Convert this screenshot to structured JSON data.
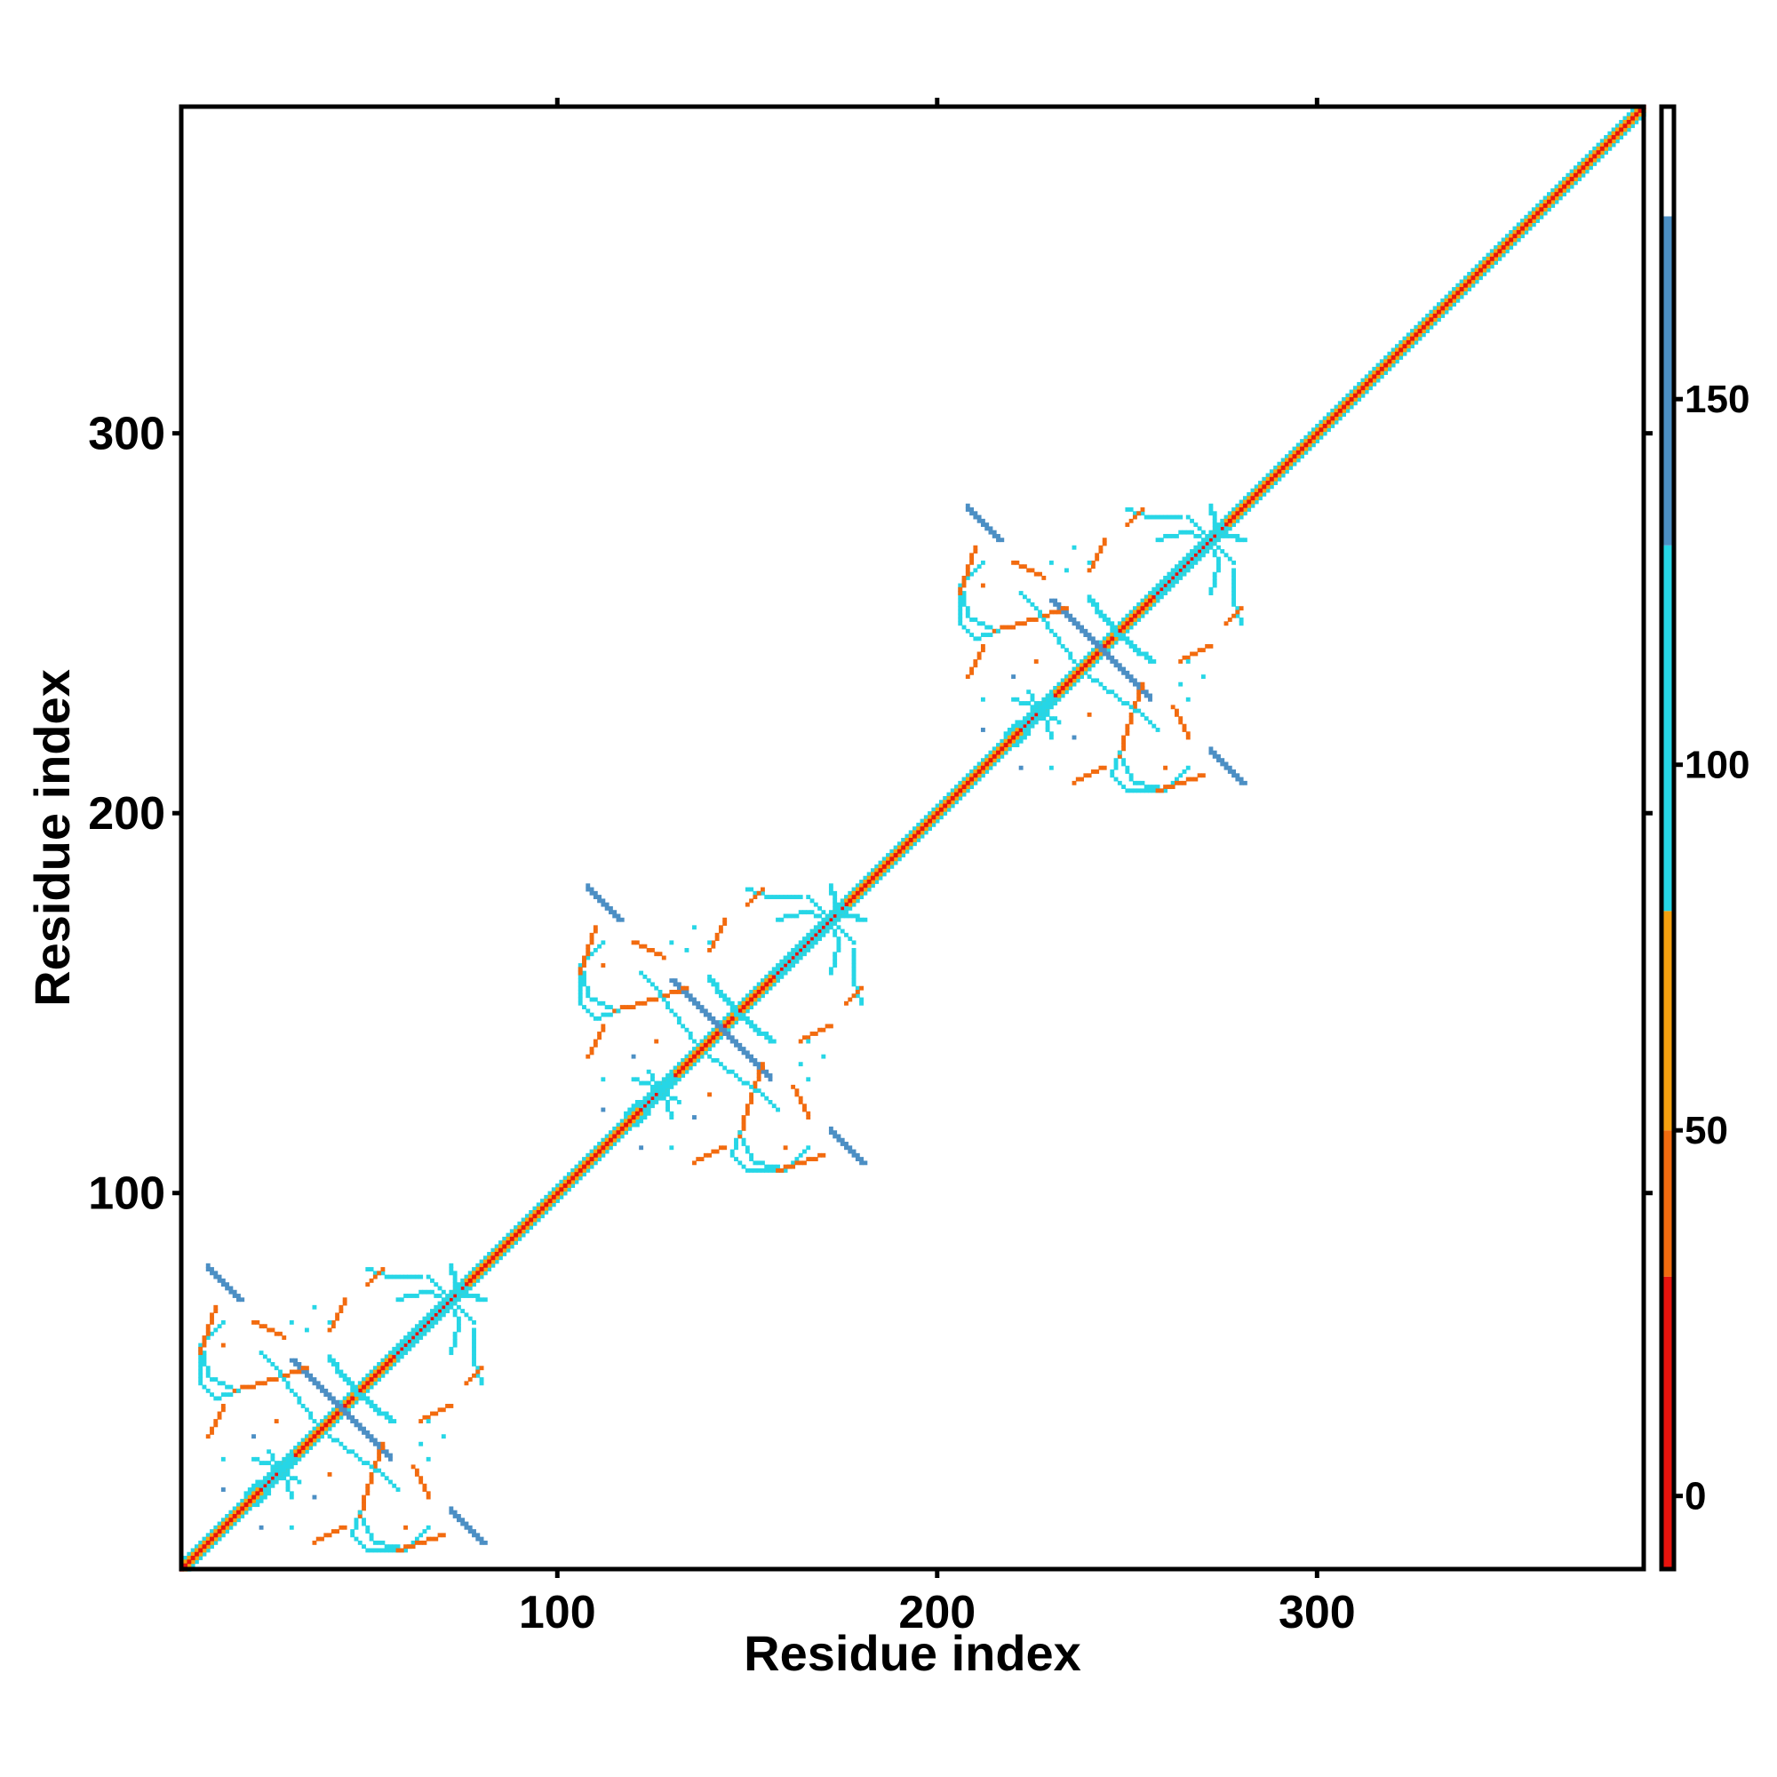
{
  "chart_data": {
    "type": "heatmap",
    "title": "",
    "xlabel": "Residue index",
    "ylabel": "Residue index",
    "xlim": [
      1,
      386
    ],
    "ylim": [
      1,
      386
    ],
    "x_ticks": [
      100,
      200,
      300
    ],
    "y_ticks": [
      100,
      200,
      300
    ],
    "x_tick_labels": [
      "100",
      "200",
      "300"
    ],
    "y_tick_labels": [
      "100",
      "200",
      "300"
    ],
    "grid": false,
    "legend": "colorbar-right",
    "colorbar": {
      "range": [
        -10,
        190
      ],
      "ticks": [
        0,
        50,
        100,
        150
      ],
      "tick_labels": [
        "0",
        "50",
        "100",
        "150"
      ],
      "bands": [
        {
          "from": -10,
          "to": 30,
          "color": "#e8130d"
        },
        {
          "from": 30,
          "to": 50,
          "color": "#f26b0f"
        },
        {
          "from": 50,
          "to": 80,
          "color": "#f5a00f"
        },
        {
          "from": 80,
          "to": 130,
          "color": "#26d6e6"
        },
        {
          "from": 130,
          "to": 175,
          "color": "#4c8fc4"
        },
        {
          "from": 175,
          "to": 190,
          "color": "#ffffff"
        }
      ]
    },
    "colors": {
      "diag_red": "#e8130d",
      "diag_orange": "#f5a00f",
      "orange": "#f26b0f",
      "cyan": "#26d6e6",
      "steel": "#4c8fc4"
    },
    "diagonal_band": {
      "from": 1,
      "to": 386,
      "layers": [
        {
          "offset": 2,
          "color": "#26d6e6"
        },
        {
          "offset": 1,
          "color": "#f5a00f"
        },
        {
          "offset": 0,
          "color": "#e8130d"
        }
      ]
    },
    "domain_offsets": [
      0,
      100,
      200
    ],
    "segments": [
      {
        "x": [
          8,
          16
        ],
        "y": [
          80,
          72
        ],
        "color": "#4c8fc4"
      },
      {
        "x": [
          30,
          52
        ],
        "y": [
          56,
          34
        ],
        "color": "#4c8fc4"
      },
      {
        "x": [
          56,
          74
        ],
        "y": [
          58,
          76
        ],
        "color": "#26d6e6"
      },
      {
        "x": [
          46,
          56
        ],
        "y": [
          48,
          40
        ],
        "color": "#26d6e6"
      },
      {
        "x": [
          72,
          80
        ],
        "y": [
          16,
          8
        ],
        "color": "#4c8fc4"
      },
      {
        "x": [
          20,
          30
        ],
        "y": [
          18,
          30
        ],
        "color": "#26d6e6"
      },
      {
        "x": [
          74,
          80
        ],
        "y": [
          74,
          72
        ],
        "color": "#26d6e6"
      }
    ],
    "curves": [
      {
        "x": [
          12,
          6,
          8,
          15
        ],
        "y": [
          66,
          60,
          52,
          48
        ],
        "color": "#26d6e6"
      },
      {
        "x": [
          15,
          22,
          28,
          34
        ],
        "y": [
          48,
          50,
          52,
          54
        ],
        "color": "#f26b0f"
      },
      {
        "x": [
          48,
          46,
          50,
          58
        ],
        "y": [
          16,
          10,
          6,
          6
        ],
        "color": "#26d6e6"
      },
      {
        "x": [
          58,
          64,
          70
        ],
        "y": [
          6,
          8,
          10
        ],
        "color": "#f26b0f"
      },
      {
        "x": [
          66,
          70,
          74,
          72
        ],
        "y": [
          78,
          74,
          66,
          58
        ],
        "color": "#26d6e6"
      },
      {
        "x": [
          50,
          56,
          64
        ],
        "y": [
          80,
          78,
          78
        ],
        "color": "#26d6e6"
      },
      {
        "x": [
          40,
          48,
          54,
          58
        ],
        "y": [
          36,
          30,
          26,
          22
        ],
        "color": "#26d6e6"
      },
      {
        "x": [
          24,
          28,
          30
        ],
        "y": [
          32,
          26,
          20
        ],
        "color": "#26d6e6"
      },
      {
        "x": [
          62,
          64,
          66
        ],
        "y": [
          28,
          24,
          20
        ],
        "color": "#f26b0f"
      },
      {
        "x": [
          8,
          10,
          12
        ],
        "y": [
          36,
          40,
          44
        ],
        "color": "#f26b0f"
      },
      {
        "x": [
          40,
          42,
          44
        ],
        "y": [
          64,
          68,
          72
        ],
        "color": "#f26b0f"
      },
      {
        "x": [
          76,
          78,
          80
        ],
        "y": [
          50,
          52,
          54
        ],
        "color": "#f26b0f"
      }
    ],
    "dots": [
      {
        "x": 30,
        "y": 66,
        "color": "#26d6e6"
      },
      {
        "x": 34,
        "y": 64,
        "color": "#26d6e6"
      },
      {
        "x": 66,
        "y": 40,
        "color": "#26d6e6"
      },
      {
        "x": 70,
        "y": 36,
        "color": "#26d6e6"
      },
      {
        "x": 78,
        "y": 56,
        "color": "#26d6e6"
      },
      {
        "x": 22,
        "y": 12,
        "color": "#4c8fc4"
      },
      {
        "x": 36,
        "y": 20,
        "color": "#4c8fc4"
      },
      {
        "x": 12,
        "y": 30,
        "color": "#26d6e6"
      },
      {
        "x": 26,
        "y": 40,
        "color": "#f26b0f"
      },
      {
        "x": 60,
        "y": 12,
        "color": "#f26b0f"
      }
    ]
  }
}
